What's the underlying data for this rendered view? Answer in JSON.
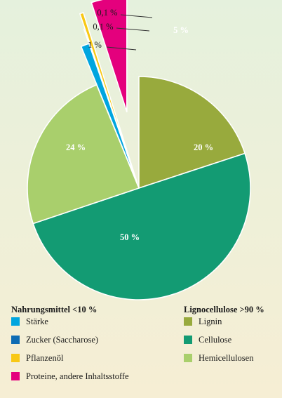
{
  "chart_data": {
    "type": "pie",
    "exploded": true,
    "slices": [
      {
        "label": "Stärke",
        "value": 1,
        "value_label": "1 %",
        "color": "#00a5df",
        "group": "food"
      },
      {
        "label": "Zucker (Saccharose)",
        "value": 0.1,
        "value_label": "0,1 %",
        "color": "#0e6cb4",
        "group": "food"
      },
      {
        "label": "Pflanzenöl",
        "value": 0.1,
        "value_label": "0,1 %",
        "color": "#f8c814",
        "group": "food"
      },
      {
        "label": "Proteine, andere Inhaltsstoffe",
        "value": 5,
        "value_label": "5 %",
        "color": "#e4007d",
        "group": "food"
      },
      {
        "label": "Lignin",
        "value": 20,
        "value_label": "20 %",
        "color": "#98aa3d",
        "group": "ligno"
      },
      {
        "label": "Cellulose",
        "value": 50,
        "value_label": "50 %",
        "color": "#139b73",
        "group": "ligno"
      },
      {
        "label": "Hemicellulosen",
        "value": 24,
        "value_label": "24 %",
        "color": "#a9cf6c",
        "group": "ligno"
      }
    ]
  },
  "legend": {
    "food_title": "Nahrungsmittel <10 %",
    "ligno_title": "Lignocellulose >90 %"
  }
}
